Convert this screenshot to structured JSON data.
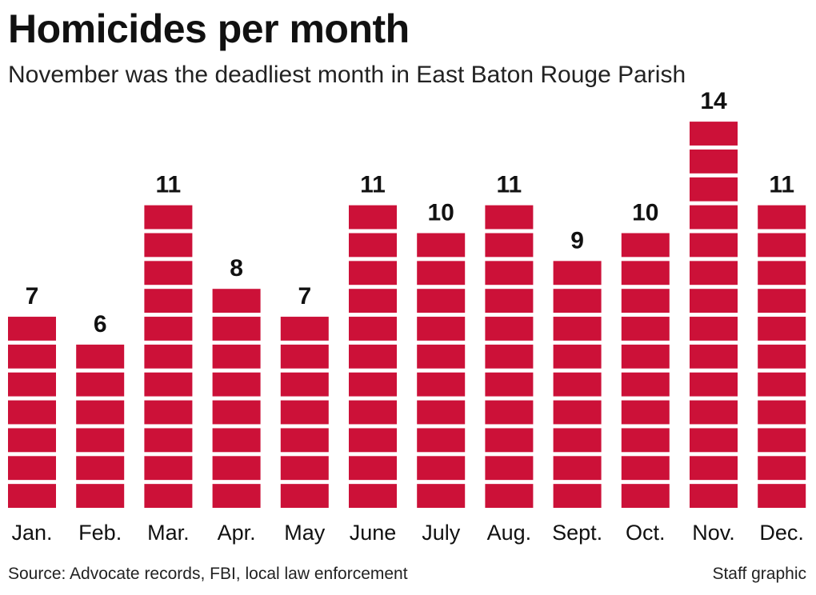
{
  "title": "Homicides per month",
  "subtitle": "November was the deadliest month in East Baton Rouge Parish",
  "source": "Source: Advocate records, FBI, local law enforcement",
  "credit": "Staff graphic",
  "colors": {
    "bar": "#cc1138",
    "text": "#111111"
  },
  "chart_data": {
    "type": "bar",
    "title": "Homicides per month",
    "subtitle": "November was the deadliest month in East Baton Rouge Parish",
    "categories": [
      "Jan.",
      "Feb.",
      "Mar.",
      "Apr.",
      "May",
      "June",
      "July",
      "Aug.",
      "Sept.",
      "Oct.",
      "Nov.",
      "Dec."
    ],
    "values": [
      7,
      6,
      11,
      8,
      7,
      11,
      10,
      11,
      9,
      10,
      14,
      11
    ],
    "data_labels": [
      "7",
      "6",
      "11",
      "8",
      "7",
      "11",
      "10",
      "11",
      "9",
      "10",
      "14",
      "11"
    ],
    "xlabel": "",
    "ylabel": "",
    "ylim": [
      0,
      14
    ],
    "grid": false,
    "legend": "none",
    "style": "stacked unit blocks"
  }
}
